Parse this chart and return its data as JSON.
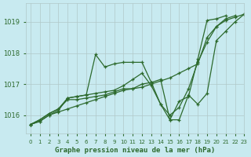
{
  "title": "Graphe pression niveau de la mer (hPa)",
  "bg_color": "#c8eaf0",
  "grid_color": "#b0c8c8",
  "line_color": "#2d6a2d",
  "xlim": [
    -0.5,
    23
  ],
  "ylim": [
    1015.4,
    1019.6
  ],
  "yticks": [
    1016,
    1017,
    1018,
    1019
  ],
  "xticks": [
    0,
    1,
    2,
    3,
    4,
    5,
    6,
    7,
    8,
    9,
    10,
    11,
    12,
    13,
    14,
    15,
    16,
    17,
    18,
    19,
    20,
    21,
    22,
    23
  ],
  "series": [
    [
      1015.7,
      1015.8,
      1016.0,
      1016.1,
      1016.2,
      1016.3,
      1016.4,
      1016.5,
      1016.6,
      1016.7,
      1016.8,
      1016.85,
      1016.9,
      1017.0,
      1017.1,
      1017.2,
      1017.35,
      1017.5,
      1017.65,
      1018.5,
      1018.85,
      1019.05,
      1019.15,
      1019.25
    ],
    [
      1015.7,
      1015.8,
      1016.0,
      1016.15,
      1016.55,
      1016.6,
      1016.65,
      1017.95,
      1017.55,
      1017.65,
      1017.7,
      1017.7,
      1017.7,
      1017.05,
      1016.35,
      1015.85,
      1016.45,
      1016.6,
      1017.8,
      1019.05,
      1019.1,
      1019.2,
      null,
      null
    ],
    [
      1015.7,
      1015.85,
      1016.05,
      1016.2,
      1016.55,
      1016.6,
      1016.65,
      1016.7,
      1016.75,
      1016.8,
      1016.95,
      1017.15,
      1017.35,
      1016.95,
      1016.35,
      1016.0,
      1016.25,
      1016.85,
      1017.7,
      1018.35,
      1018.85,
      1019.1,
      1019.2,
      null
    ],
    [
      1015.7,
      1015.85,
      1016.05,
      1016.2,
      1016.5,
      1016.5,
      1016.55,
      1016.6,
      1016.65,
      1016.75,
      1016.85,
      1016.85,
      1017.0,
      1017.05,
      1017.15,
      1015.85,
      1015.85,
      1016.65,
      1016.35,
      1016.7,
      1018.4,
      1018.7,
      1019.0,
      1019.25
    ]
  ]
}
